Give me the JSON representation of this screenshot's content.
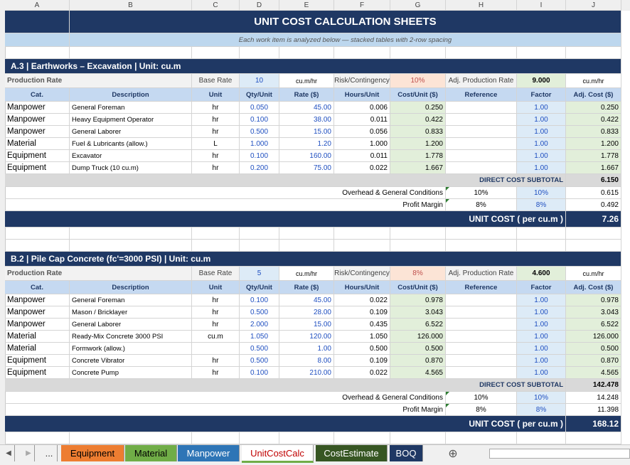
{
  "column_headers": [
    "A",
    "B",
    "C",
    "D",
    "E",
    "F",
    "G",
    "H",
    "I",
    "J"
  ],
  "title": "UNIT COST CALCULATION SHEETS",
  "subtitle": "Each work item is analyzed below — stacked tables with 2-row spacing",
  "sections": [
    {
      "header": "A.3  |  Earthworks – Excavation  |  Unit: cu.m",
      "production": [
        "Production Rate",
        "Base Rate",
        "10",
        "cu.m/hr",
        "Risk/Contingency",
        "10%",
        "Adj. Production Rate",
        "9.000",
        "cu.m/hr"
      ],
      "columns": [
        "Cat.",
        "Description",
        "Unit",
        "Qty/Unit",
        "Rate ($)",
        "Hours/Unit",
        "Cost/Unit ($)",
        "Reference",
        "Factor",
        "Adj. Cost ($)"
      ],
      "rows": [
        [
          "Manpower",
          "General Foreman",
          "hr",
          "0.050",
          "45.00",
          "0.006",
          "0.250",
          null,
          "1.00",
          "0.250"
        ],
        [
          "Manpower",
          "Heavy Equipment Operator",
          "hr",
          "0.100",
          "38.00",
          "0.011",
          "0.422",
          null,
          "1.00",
          "0.422"
        ],
        [
          "Manpower",
          "General Laborer",
          "hr",
          "0.500",
          "15.00",
          "0.056",
          "0.833",
          null,
          "1.00",
          "0.833"
        ],
        [
          "Material",
          "Fuel & Lubricants (allow.)",
          "L",
          "1.000",
          "1.20",
          "1.000",
          "1.200",
          null,
          "1.00",
          "1.200"
        ],
        [
          "Equipment",
          "Excavator",
          "hr",
          "0.100",
          "160.00",
          "0.011",
          "1.778",
          null,
          "1.00",
          "1.778"
        ],
        [
          "Equipment",
          "Dump Truck (10 cu.m)",
          "hr",
          "0.200",
          "75.00",
          "0.022",
          "1.667",
          null,
          "1.00",
          "1.667"
        ]
      ],
      "subtotal": [
        "DIRECT COST SUBTOTAL",
        "6.150"
      ],
      "overhead": [
        "Overhead & General Conditions",
        "10%",
        "10%",
        "0.615"
      ],
      "profit": [
        "Profit Margin",
        "8%",
        "8%",
        "0.492"
      ],
      "unit_cost": [
        "UNIT COST  ( per cu.m )",
        "7.26"
      ]
    },
    {
      "header": "B.2  |  Pile Cap Concrete (fc'=3000 PSI)  |  Unit: cu.m",
      "production": [
        "Production Rate",
        "Base Rate",
        "5",
        "cu.m/hr",
        "Risk/Contingency",
        "8%",
        "Adj. Production Rate",
        "4.600",
        "cu.m/hr"
      ],
      "columns": [
        "Cat.",
        "Description",
        "Unit",
        "Qty/Unit",
        "Rate ($)",
        "Hours/Unit",
        "Cost/Unit ($)",
        "Reference",
        "Factor",
        "Adj. Cost ($)"
      ],
      "rows": [
        [
          "Manpower",
          "General Foreman",
          "hr",
          "0.100",
          "45.00",
          "0.022",
          "0.978",
          null,
          "1.00",
          "0.978"
        ],
        [
          "Manpower",
          "Mason / Bricklayer",
          "hr",
          "0.500",
          "28.00",
          "0.109",
          "3.043",
          null,
          "1.00",
          "3.043"
        ],
        [
          "Manpower",
          "General Laborer",
          "hr",
          "2.000",
          "15.00",
          "0.435",
          "6.522",
          null,
          "1.00",
          "6.522"
        ],
        [
          "Material",
          "Ready-Mix Concrete 3000 PSI",
          "cu.m",
          "1.050",
          "120.00",
          "1.050",
          "126.000",
          null,
          "1.00",
          "126.000"
        ],
        [
          "Material",
          "Formwork (allow.)",
          null,
          "0.500",
          "1.00",
          "0.500",
          "0.500",
          null,
          "1.00",
          "0.500"
        ],
        [
          "Equipment",
          "Concrete Vibrator",
          "hr",
          "0.500",
          "8.00",
          "0.109",
          "0.870",
          null,
          "1.00",
          "0.870"
        ],
        [
          "Equipment",
          "Concrete Pump",
          "hr",
          "0.100",
          "210.00",
          "0.022",
          "4.565",
          null,
          "1.00",
          "4.565"
        ]
      ],
      "subtotal": [
        "DIRECT COST SUBTOTAL",
        "142.478"
      ],
      "overhead": [
        "Overhead & General Conditions",
        "10%",
        "10%",
        "14.248"
      ],
      "profit": [
        "Profit Margin",
        "8%",
        "8%",
        "11.398"
      ],
      "unit_cost": [
        "UNIT COST  ( per cu.m )",
        "168.12"
      ]
    }
  ],
  "tabs": [
    "Equipment",
    "Material",
    "Manpower",
    "UnitCostCalc",
    "CostEstimate",
    "BOQ"
  ]
}
